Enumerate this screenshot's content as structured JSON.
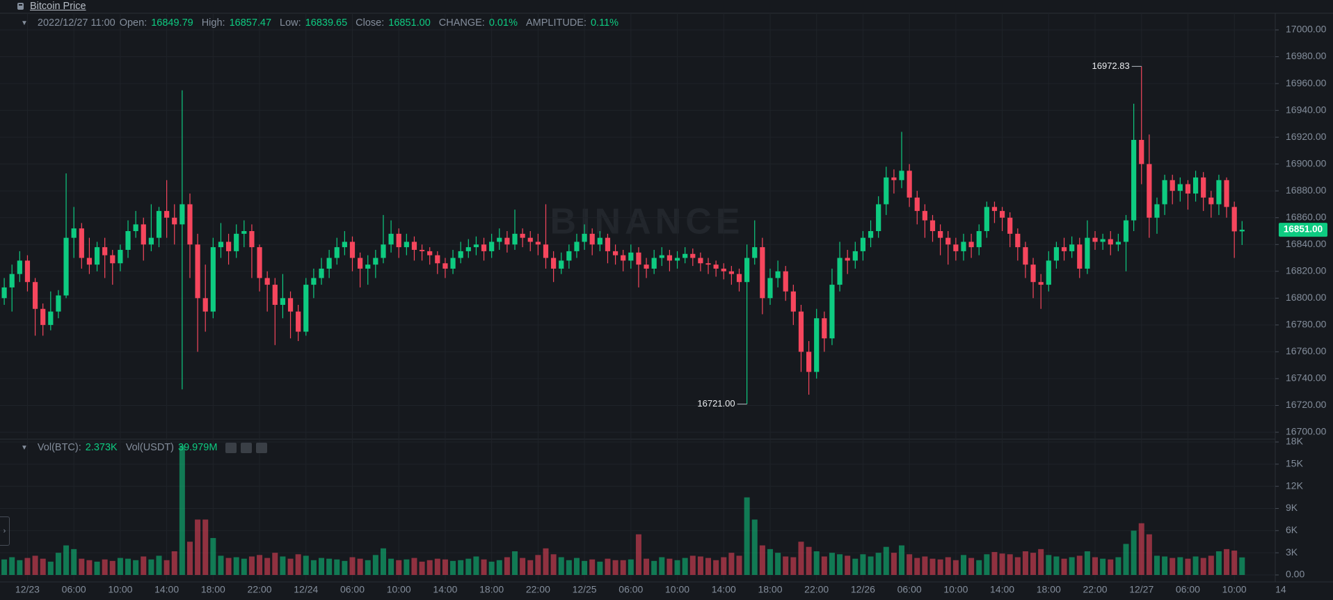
{
  "chart_data": {
    "type": "candlestick",
    "title": "Bitcoin Price",
    "watermark": "BINANCE",
    "header": {
      "time": "2022/12/27 11:00",
      "items": [
        {
          "label": "Open:",
          "value": "16849.79"
        },
        {
          "label": "High:",
          "value": "16857.47"
        },
        {
          "label": "Low:",
          "value": "16839.65"
        },
        {
          "label": "Close:",
          "value": "16851.00"
        },
        {
          "label": "CHANGE:",
          "value": "0.01%"
        },
        {
          "label": "AMPLITUDE:",
          "value": "0.11%"
        }
      ]
    },
    "volume_header": {
      "items": [
        {
          "label": "Vol(BTC):",
          "value": "2.373K"
        },
        {
          "label": "Vol(USDT)",
          "value": "39.979M"
        }
      ]
    },
    "last_price_label": "16851.00",
    "up_color": "#0ecb81",
    "down_color": "#f6465d",
    "grid": true,
    "open": [
      16800,
      16808,
      16818,
      16828,
      16812,
      16792,
      16780,
      16790,
      16802,
      16845,
      16852,
      16830,
      16825,
      16838,
      16832,
      16826,
      16836,
      16850,
      16855,
      16840,
      16845,
      16865,
      16860,
      16855,
      16870,
      16840,
      16800,
      16790,
      16838,
      16842,
      16835,
      16848,
      16850,
      16838,
      16815,
      16810,
      16795,
      16800,
      16790,
      16775,
      16810,
      16815,
      16822,
      16830,
      16838,
      16842,
      16830,
      16822,
      16825,
      16830,
      16840,
      16848,
      16838,
      16842,
      16836,
      16835,
      16832,
      16826,
      16822,
      16830,
      16835,
      16838,
      16840,
      16835,
      16842,
      16845,
      16840,
      16848,
      16845,
      16842,
      16840,
      16830,
      16822,
      16828,
      16835,
      16842,
      16848,
      16840,
      16845,
      16835,
      16832,
      16828,
      16834,
      16825,
      16822,
      16830,
      16832,
      16828,
      16830,
      16833,
      16830,
      16826,
      16825,
      16822,
      16820,
      16818,
      16812,
      16830,
      16838,
      16800,
      16815,
      16820,
      16805,
      16790,
      16760,
      16745,
      16785,
      16770,
      16810,
      16830,
      16828,
      16835,
      16845,
      16850,
      16870,
      16890,
      16888,
      16895,
      16875,
      16865,
      16858,
      16850,
      16845,
      16840,
      16835,
      16842,
      16838,
      16850,
      16868,
      16865,
      16860,
      16848,
      16838,
      16825,
      16812,
      16810,
      16828,
      16838,
      16835,
      16840,
      16822,
      16845,
      16842,
      16844,
      16840,
      16842,
      16858,
      16918,
      16900,
      16860,
      16870,
      16888,
      16880,
      16885,
      16878,
      16890,
      16875,
      16870,
      16888,
      16868,
      16849.79
    ],
    "high": [
      16815,
      16825,
      16835,
      16832,
      16815,
      16796,
      16805,
      16806,
      16893,
      16868,
      16856,
      16845,
      16842,
      16845,
      16836,
      16840,
      16858,
      16865,
      16860,
      16870,
      16868,
      16888,
      16870,
      16955,
      16878,
      16848,
      16825,
      16845,
      16856,
      16848,
      16855,
      16858,
      16855,
      16840,
      16820,
      16815,
      16818,
      16805,
      16795,
      16815,
      16822,
      16830,
      16836,
      16845,
      16850,
      16846,
      16834,
      16832,
      16836,
      16862,
      16858,
      16852,
      16848,
      16846,
      16840,
      16838,
      16835,
      16830,
      16836,
      16842,
      16844,
      16846,
      16845,
      16848,
      16852,
      16850,
      16866,
      16852,
      16850,
      16848,
      16870,
      16835,
      16834,
      16840,
      16848,
      16855,
      16852,
      16850,
      16848,
      16840,
      16836,
      16840,
      16838,
      16830,
      16836,
      16838,
      16836,
      16835,
      16838,
      16837,
      16834,
      16830,
      16828,
      16826,
      16824,
      16822,
      16840,
      16858,
      16845,
      16822,
      16828,
      16824,
      16810,
      16795,
      16768,
      16792,
      16790,
      16822,
      16842,
      16836,
      16842,
      16850,
      16858,
      16876,
      16898,
      16896,
      16924,
      16900,
      16880,
      16870,
      16862,
      16855,
      16850,
      16845,
      16848,
      16848,
      16855,
      16872,
      16872,
      16868,
      16864,
      16852,
      16842,
      16830,
      16818,
      16835,
      16842,
      16845,
      16846,
      16845,
      16858,
      16850,
      16848,
      16850,
      16848,
      16862,
      16945,
      16972.83,
      16922,
      16875,
      16892,
      16892,
      16890,
      16888,
      16895,
      16894,
      16880,
      16892,
      16890,
      16872,
      16857.47
    ],
    "low": [
      16795,
      16790,
      16812,
      16805,
      16772,
      16772,
      16776,
      16785,
      16800,
      16830,
      16822,
      16818,
      16820,
      16815,
      16810,
      16820,
      16830,
      16845,
      16828,
      16835,
      16838,
      16845,
      16840,
      16732,
      16815,
      16760,
      16775,
      16785,
      16830,
      16825,
      16830,
      16838,
      16815,
      16805,
      16790,
      16765,
      16785,
      16770,
      16768,
      16772,
      16800,
      16810,
      16815,
      16825,
      16832,
      16820,
      16808,
      16810,
      16815,
      16826,
      16834,
      16830,
      16832,
      16828,
      16828,
      16825,
      16818,
      16815,
      16818,
      16826,
      16830,
      16832,
      16828,
      16830,
      16836,
      16834,
      16836,
      16838,
      16835,
      16832,
      16822,
      16812,
      16818,
      16822,
      16830,
      16836,
      16832,
      16835,
      16826,
      16825,
      16820,
      16822,
      16808,
      16815,
      16818,
      16824,
      16820,
      16822,
      16826,
      16824,
      16820,
      16818,
      16816,
      16814,
      16810,
      16805,
      16721,
      16825,
      16788,
      16795,
      16808,
      16798,
      16780,
      16745,
      16728,
      16740,
      16760,
      16765,
      16805,
      16818,
      16822,
      16828,
      16838,
      16845,
      16862,
      16878,
      16882,
      16868,
      16855,
      16845,
      16842,
      16832,
      16825,
      16828,
      16828,
      16830,
      16832,
      16845,
      16856,
      16850,
      16838,
      16828,
      16815,
      16800,
      16792,
      16805,
      16822,
      16828,
      16830,
      16815,
      16818,
      16836,
      16836,
      16832,
      16835,
      16820,
      16850,
      16885,
      16845,
      16848,
      16862,
      16870,
      16872,
      16866,
      16872,
      16865,
      16860,
      16862,
      16860,
      16830,
      16839.65
    ],
    "close": [
      16808,
      16818,
      16828,
      16812,
      16792,
      16780,
      16790,
      16802,
      16845,
      16852,
      16830,
      16825,
      16838,
      16832,
      16826,
      16836,
      16850,
      16855,
      16840,
      16845,
      16865,
      16860,
      16855,
      16870,
      16840,
      16800,
      16790,
      16838,
      16842,
      16835,
      16848,
      16850,
      16838,
      16815,
      16810,
      16795,
      16800,
      16790,
      16775,
      16810,
      16815,
      16822,
      16830,
      16838,
      16842,
      16830,
      16822,
      16825,
      16830,
      16840,
      16848,
      16838,
      16842,
      16836,
      16835,
      16832,
      16826,
      16822,
      16830,
      16835,
      16838,
      16840,
      16835,
      16842,
      16845,
      16840,
      16848,
      16845,
      16842,
      16840,
      16830,
      16822,
      16828,
      16835,
      16842,
      16848,
      16840,
      16845,
      16835,
      16832,
      16828,
      16834,
      16825,
      16822,
      16830,
      16832,
      16828,
      16830,
      16833,
      16830,
      16826,
      16825,
      16822,
      16820,
      16818,
      16812,
      16830,
      16838,
      16800,
      16815,
      16820,
      16805,
      16790,
      16760,
      16745,
      16785,
      16770,
      16810,
      16830,
      16828,
      16835,
      16845,
      16850,
      16870,
      16890,
      16888,
      16895,
      16875,
      16865,
      16858,
      16850,
      16845,
      16840,
      16835,
      16842,
      16838,
      16850,
      16868,
      16865,
      16860,
      16848,
      16838,
      16825,
      16812,
      16810,
      16828,
      16838,
      16835,
      16840,
      16822,
      16845,
      16842,
      16844,
      16840,
      16842,
      16858,
      16918,
      16900,
      16860,
      16870,
      16888,
      16880,
      16885,
      16878,
      16890,
      16875,
      16870,
      16888,
      16868,
      16849.79,
      16851
    ],
    "volume": [
      2100,
      2400,
      2000,
      2300,
      2600,
      2200,
      1800,
      3000,
      4000,
      3500,
      2200,
      2000,
      1800,
      2100,
      1900,
      2300,
      2200,
      2000,
      2500,
      2100,
      2600,
      2000,
      3200,
      17500,
      4500,
      7500,
      7500,
      5000,
      2600,
      2300,
      2400,
      2200,
      2500,
      2700,
      2300,
      3000,
      2500,
      2200,
      2800,
      2600,
      2000,
      2300,
      2200,
      2100,
      1900,
      2400,
      2200,
      2000,
      2700,
      3600,
      2200,
      2000,
      2100,
      2300,
      1800,
      2000,
      2200,
      2100,
      1900,
      2000,
      2200,
      2500,
      2100,
      1800,
      2000,
      2400,
      3200,
      2300,
      2000,
      2700,
      3600,
      2800,
      2400,
      2000,
      2300,
      1900,
      2100,
      1800,
      2200,
      2000,
      2000,
      2100,
      5500,
      2200,
      1900,
      2400,
      2200,
      2000,
      2300,
      2600,
      2500,
      2300,
      2000,
      2400,
      3000,
      2600,
      10500,
      7500,
      4000,
      3500,
      3000,
      2500,
      2400,
      4500,
      3800,
      3200,
      2500,
      3000,
      2800,
      2600,
      2200,
      2800,
      2500,
      3000,
      3800,
      3000,
      4000,
      2800,
      2300,
      2500,
      2200,
      2100,
      2400,
      2000,
      2700,
      2300,
      2000,
      2800,
      3100,
      2900,
      2800,
      2400,
      3200,
      3000,
      3500,
      2700,
      2500,
      2200,
      2400,
      2600,
      3200,
      2400,
      2200,
      2100,
      2400,
      4200,
      6000,
      7000,
      5500,
      2600,
      2500,
      2300,
      2400,
      2200,
      2500,
      2300,
      2600,
      3200,
      3500,
      3300,
      2373
    ],
    "annotations": [
      {
        "value": 16972.83,
        "label": "16972.83"
      },
      {
        "value": 16721,
        "label": "16721.00"
      }
    ],
    "ylim": [
      16700,
      17000
    ],
    "yticks": [
      {
        "value": 16700,
        "label": "16700.00"
      },
      {
        "value": 16720,
        "label": "16720.00"
      },
      {
        "value": 16740,
        "label": "16740.00"
      },
      {
        "value": 16760,
        "label": "16760.00"
      },
      {
        "value": 16780,
        "label": "16780.00"
      },
      {
        "value": 16800,
        "label": "16800.00"
      },
      {
        "value": 16820,
        "label": "16820.00"
      },
      {
        "value": 16840,
        "label": "16840.00"
      },
      {
        "value": 16860,
        "label": "16860.00"
      },
      {
        "value": 16880,
        "label": "16880.00"
      },
      {
        "value": 16900,
        "label": "16900.00"
      },
      {
        "value": 16920,
        "label": "16920.00"
      },
      {
        "value": 16940,
        "label": "16940.00"
      },
      {
        "value": 16960,
        "label": "16960.00"
      },
      {
        "value": 16980,
        "label": "16980.00"
      },
      {
        "value": 17000,
        "label": "17000.00"
      }
    ],
    "vol_ylim": [
      0,
      18000
    ],
    "vol_yticks": [
      {
        "value": 0,
        "label": "0.00"
      },
      {
        "value": 3000,
        "label": "3K"
      },
      {
        "value": 6000,
        "label": "6K"
      },
      {
        "value": 9000,
        "label": "9K"
      },
      {
        "value": 12000,
        "label": "12K"
      },
      {
        "value": 15000,
        "label": "15K"
      },
      {
        "value": 18000,
        "label": "18K"
      }
    ],
    "xticks": [
      {
        "value": 3,
        "label": "12/23"
      },
      {
        "value": 9,
        "label": "06:00"
      },
      {
        "value": 15,
        "label": "10:00"
      },
      {
        "value": 21,
        "label": "14:00"
      },
      {
        "value": 27,
        "label": "18:00"
      },
      {
        "value": 33,
        "label": "22:00"
      },
      {
        "value": 39,
        "label": "12/24"
      },
      {
        "value": 45,
        "label": "06:00"
      },
      {
        "value": 51,
        "label": "10:00"
      },
      {
        "value": 57,
        "label": "14:00"
      },
      {
        "value": 63,
        "label": "18:00"
      },
      {
        "value": 69,
        "label": "22:00"
      },
      {
        "value": 75,
        "label": "12/25"
      },
      {
        "value": 81,
        "label": "06:00"
      },
      {
        "value": 87,
        "label": "10:00"
      },
      {
        "value": 93,
        "label": "14:00"
      },
      {
        "value": 99,
        "label": "18:00"
      },
      {
        "value": 105,
        "label": "22:00"
      },
      {
        "value": 111,
        "label": "12/26"
      },
      {
        "value": 117,
        "label": "06:00"
      },
      {
        "value": 123,
        "label": "10:00"
      },
      {
        "value": 129,
        "label": "14:00"
      },
      {
        "value": 135,
        "label": "18:00"
      },
      {
        "value": 141,
        "label": "22:00"
      },
      {
        "value": 147,
        "label": "12/27"
      },
      {
        "value": 153,
        "label": "06:00"
      },
      {
        "value": 159,
        "label": "10:00"
      },
      {
        "value": 165,
        "label": "14"
      }
    ]
  }
}
